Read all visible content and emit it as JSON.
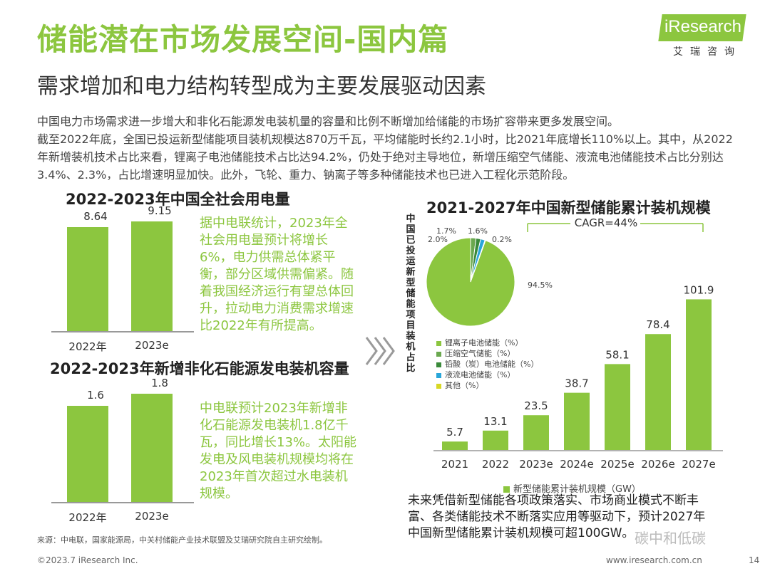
{
  "header": {
    "title": "储能潜在市场发展空间-国内篇",
    "subtitle": "需求增加和电力结构转型成为主要发展驱动因素"
  },
  "logo": {
    "brand": "iResearch",
    "cn": "艾瑞咨询"
  },
  "intro": {
    "line1": "中国电力市场需求进一步增大和非化石能源发电装机量的容量和比例不断增加给储能的市场扩容带来更多发展空间。",
    "line2": "截至2022年底，全国已投运新型储能项目装机规模达870万千瓦，平均储能时长约2.1小时，比2021年底增长110%以上。其中，从2022年新增装机技术占比来看，锂离子电池储能技术占比达94.2%，仍处于绝对主导地位，新增压缩空气储能、液流电池储能技术占比分别达3.4%、2.3%，占比增速明显加快。此外，飞轮、重力、钠离子等多种储能技术也已进入工程化示范阶段。"
  },
  "chart_data": [
    {
      "type": "bar",
      "title": "2022-2023年中国全社会用电量",
      "categories": [
        "2022年",
        "2023e"
      ],
      "values": [
        8.64,
        9.15
      ],
      "value_labels": [
        "8.64",
        "9.15"
      ],
      "ylim": [
        0,
        9.5
      ],
      "note": "据中电联统计，2023年全社会用电量预计将增长6%，电力供需总体紧平衡，部分区域供需偏紧。随着我国经济运行有望总体回升，拉动电力消费需求增速比2022年有所提高。"
    },
    {
      "type": "bar",
      "title": "2022-2023年新增非化石能源发电装机容量",
      "categories": [
        "2022年",
        "2023e"
      ],
      "values": [
        1.6,
        1.8
      ],
      "value_labels": [
        "1.6",
        "1.8"
      ],
      "ylim": [
        0,
        1.9
      ],
      "note": "中电联预计2023年新增非化石能源发电装机1.8亿千瓦，同比增长13%。太阳能发电及风电装机规模均将在2023年首次超过水电装机规模。"
    },
    {
      "type": "pie",
      "ylabel": "中国已投运新型储能项目装机占比",
      "slices": [
        {
          "label": "锂离子电池储能（%）",
          "value": 94.5,
          "value_label": "94.5%",
          "color": "#8cc63f"
        },
        {
          "label": "压缩空气储能（%）",
          "value": 2.0,
          "value_label": "2.0%",
          "color": "#6aa84f"
        },
        {
          "label": "铅酸（炭）电池储能（%）",
          "value": 1.7,
          "value_label": "1.7%",
          "color": "#3a8a3a"
        },
        {
          "label": "液流电池储能（%）",
          "value": 1.6,
          "value_label": "1.6%",
          "color": "#29a6d9"
        },
        {
          "label": "其他（%）",
          "value": 0.2,
          "value_label": "0.2%",
          "color": "#d8d825"
        }
      ]
    },
    {
      "type": "bar",
      "title": "2021-2027年中国新型储能累计装机规模",
      "categories": [
        "2021",
        "2022",
        "2023e",
        "2024e",
        "2025e",
        "2026e",
        "2027e"
      ],
      "values": [
        5.7,
        13.1,
        23.5,
        38.7,
        58.1,
        78.4,
        101.9
      ],
      "value_labels": [
        "5.7",
        "13.1",
        "23.5",
        "38.7",
        "58.1",
        "78.4",
        "101.9"
      ],
      "ylim": [
        0,
        105
      ],
      "legend": "新型储能累计装机规模（GW）",
      "annotation": "CAGR=44%"
    }
  ],
  "conclusion": "未来凭借新型储能各项政策落实、市场商业模式不断丰富、各类储能技术不断落实应用等驱动下，预计2027年中国新型储能累计装机规模可超100GW。",
  "watermark": "碳中和低碳",
  "source": "来源：中电联，国家能源局，中关村储能产业技术联盟及艾瑞研究院自主研究绘制。",
  "footer": {
    "copyright": "©2023.7 iResearch Inc.",
    "url": "www.iresearch.com.cn",
    "page": "14"
  }
}
